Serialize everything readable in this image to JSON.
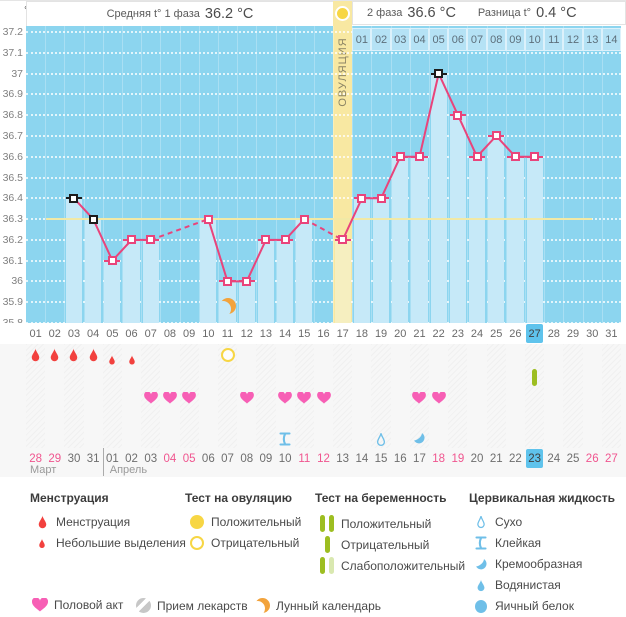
{
  "header": {
    "unit_label": "°C",
    "phase1_label": "Средняя t° 1 фаза",
    "phase1_value": "36.2 °C",
    "phase2_label": "2 фаза",
    "phase2_value": "36.6 °C",
    "diff_label": "Разница t°",
    "diff_value": "0.4 °C",
    "ovulation_label": "ОВУЛЯЦИЯ"
  },
  "chart_data": {
    "type": "line",
    "title": "Basal body temperature cycle chart",
    "y_unit": "°C",
    "ylim": [
      35.8,
      37.2
    ],
    "ytick_labels": [
      "37.2",
      "37.1",
      "37",
      "36.9",
      "36.8",
      "36.7",
      "36.6",
      "36.5",
      "36.4",
      "36.3",
      "36.2",
      "36.1",
      "36",
      "35.9",
      "35.8"
    ],
    "x_day_labels": [
      "01",
      "02",
      "03",
      "04",
      "05",
      "06",
      "07",
      "08",
      "09",
      "10",
      "11",
      "12",
      "13",
      "14",
      "15",
      "16",
      "17",
      "18",
      "19",
      "20",
      "21",
      "22",
      "23",
      "24",
      "25",
      "26",
      "27",
      "28",
      "29",
      "30",
      "31"
    ],
    "phase2_day_labels": [
      "01",
      "02",
      "03",
      "04",
      "05",
      "06",
      "07",
      "08",
      "09",
      "10",
      "11",
      "12",
      "13",
      "14"
    ],
    "ovulation_cycle_day": 17,
    "today_cycle_day": 27,
    "coverline_temp": 36.3,
    "moon_cycle_day": 11,
    "points": [
      {
        "day": 3,
        "temp": 36.4,
        "flag": "black"
      },
      {
        "day": 4,
        "temp": 36.3,
        "flag": "black"
      },
      {
        "day": 5,
        "temp": 36.1
      },
      {
        "day": 6,
        "temp": 36.2
      },
      {
        "day": 7,
        "temp": 36.2
      },
      {
        "day": 10,
        "temp": 36.3
      },
      {
        "day": 11,
        "temp": 36.0
      },
      {
        "day": 12,
        "temp": 36.0
      },
      {
        "day": 13,
        "temp": 36.2
      },
      {
        "day": 14,
        "temp": 36.2
      },
      {
        "day": 15,
        "temp": 36.3
      },
      {
        "day": 17,
        "temp": 36.2
      },
      {
        "day": 18,
        "temp": 36.4
      },
      {
        "day": 19,
        "temp": 36.4
      },
      {
        "day": 20,
        "temp": 36.6
      },
      {
        "day": 21,
        "temp": 36.6
      },
      {
        "day": 22,
        "temp": 37.0,
        "flag": "black"
      },
      {
        "day": 23,
        "temp": 36.8
      },
      {
        "day": 24,
        "temp": 36.6
      },
      {
        "day": 25,
        "temp": 36.7
      },
      {
        "day": 26,
        "temp": 36.6
      },
      {
        "day": 27,
        "temp": 36.6
      }
    ]
  },
  "marks": {
    "menstruation": [
      {
        "day": 1,
        "size": "large"
      },
      {
        "day": 2,
        "size": "large"
      },
      {
        "day": 3,
        "size": "large"
      },
      {
        "day": 4,
        "size": "large"
      },
      {
        "day": 5,
        "size": "small"
      },
      {
        "day": 6,
        "size": "small"
      }
    ],
    "ovulation_tests": [
      {
        "day": 11,
        "result": "negative"
      }
    ],
    "pregnancy_tests": [
      {
        "day": 27,
        "result": "negative"
      }
    ],
    "intercourse_days": [
      7,
      8,
      9,
      12,
      14,
      15,
      16,
      21,
      22
    ],
    "cervical_fluid": [
      {
        "day": 14,
        "type": "sticky"
      },
      {
        "day": 19,
        "type": "dry"
      },
      {
        "day": 21,
        "type": "creamy"
      }
    ]
  },
  "calendar": {
    "month1": "Март",
    "month2": "Апрель",
    "month2_start_day": 5,
    "dates": [
      "28",
      "29",
      "30",
      "31",
      "01",
      "02",
      "03",
      "04",
      "05",
      "06",
      "07",
      "08",
      "09",
      "10",
      "11",
      "12",
      "13",
      "14",
      "15",
      "16",
      "17",
      "18",
      "19",
      "20",
      "21",
      "22",
      "23",
      "24",
      "25",
      "26",
      "27"
    ],
    "weekend_days": [
      1,
      2,
      8,
      9,
      15,
      16,
      22,
      23,
      30,
      31
    ],
    "today_day": 27
  },
  "legend": {
    "sections": [
      {
        "title": "Менструация",
        "items": [
          {
            "icon": "menstruation-drop-icon",
            "label": "Менструация"
          },
          {
            "icon": "spotting-drop-icon",
            "label": "Небольшие выделения"
          }
        ]
      },
      {
        "title": "Тест на овуляцию",
        "items": [
          {
            "icon": "ovulation-positive-icon",
            "label": "Положительный"
          },
          {
            "icon": "ovulation-negative-icon",
            "label": "Отрицательный"
          }
        ]
      },
      {
        "title": "Тест на беременность",
        "items": [
          {
            "icon": "pregnancy-positive-icon",
            "label": "Положительный"
          },
          {
            "icon": "pregnancy-negative-icon",
            "label": "Отрицательный"
          },
          {
            "icon": "pregnancy-weak-icon",
            "label": "Слабоположительный"
          }
        ]
      },
      {
        "title": "Цервикальная жидкость",
        "items": [
          {
            "icon": "fluid-dry-icon",
            "label": "Сухо"
          },
          {
            "icon": "fluid-sticky-icon",
            "label": "Клейкая"
          },
          {
            "icon": "fluid-creamy-icon",
            "label": "Кремообразная"
          },
          {
            "icon": "fluid-watery-icon",
            "label": "Водянистая"
          },
          {
            "icon": "fluid-eggwhite-icon",
            "label": "Яичный белок"
          }
        ]
      }
    ],
    "footer_items": [
      {
        "icon": "intercourse-heart-icon",
        "label": "Половой акт"
      },
      {
        "icon": "medication-icon",
        "label": "Прием лекарств"
      },
      {
        "icon": "moon-icon",
        "label": "Лунный календарь"
      }
    ]
  },
  "colors": {
    "chart_bg": "#8cd5ef",
    "bar": "#c6e9f8",
    "bar_ovulation": "#f6efc0",
    "line": "#e9447b",
    "black_flag": "#1c1c1c",
    "ovulation_col": "#f8e8a2",
    "coverline": "#f1e9a6",
    "today": "#5fc3ec",
    "weekend": "#f0558f",
    "menstruation": "#f2413e",
    "heart": "#f75fb5",
    "test_green": "#9dbe21",
    "test_green_pale": "#d9e8b0",
    "fluid_blue": "#6fbfe8",
    "test_yellow": "#f7d644",
    "moon": "#f2a33c"
  }
}
